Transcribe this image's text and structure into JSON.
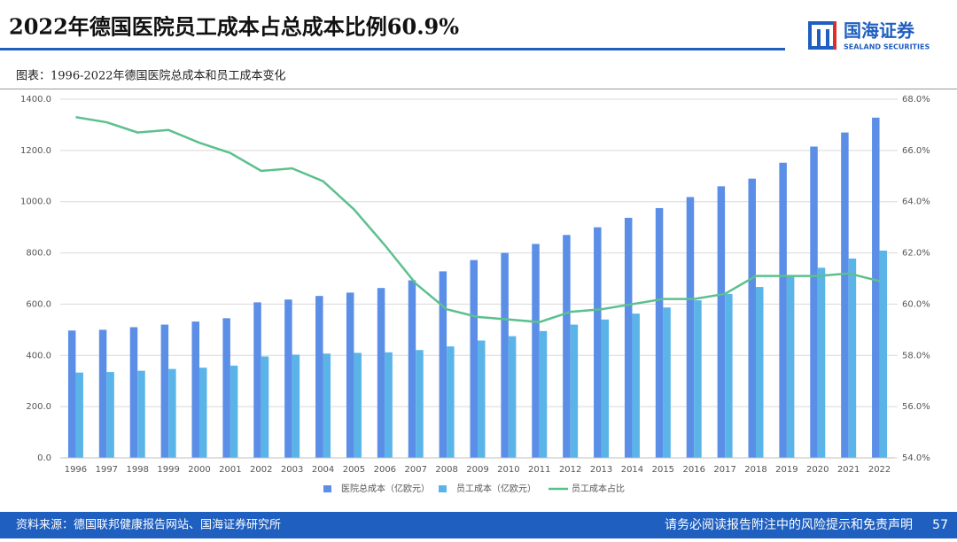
{
  "header": {
    "title": "2022年德国医院员工成本占总成本比例60.9%",
    "logo_name": "国海证券",
    "logo_sub": "SEALAND SECURITIES"
  },
  "subtitle": "图表：1996-2022年德国医院总成本和员工成本变化",
  "chart_data": {
    "type": "bar",
    "categories": [
      "1996",
      "1997",
      "1998",
      "1999",
      "2000",
      "2001",
      "2002",
      "2003",
      "2004",
      "2005",
      "2006",
      "2007",
      "2008",
      "2009",
      "2010",
      "2011",
      "2012",
      "2013",
      "2014",
      "2015",
      "2016",
      "2017",
      "2018",
      "2019",
      "2020",
      "2021",
      "2022"
    ],
    "series": [
      {
        "name": "医院总成本（亿欧元）",
        "color": "#5b8ee6",
        "type": "bar",
        "values": [
          497,
          500,
          510,
          520,
          532,
          545,
          607,
          618,
          632,
          645,
          663,
          693,
          728,
          772,
          800,
          835,
          870,
          900,
          937,
          975,
          1018,
          1060,
          1090,
          1152,
          1215,
          1270,
          1328
        ]
      },
      {
        "name": "员工成本（亿欧元）",
        "color": "#5bb4e8",
        "type": "bar",
        "values": [
          333,
          335,
          340,
          347,
          352,
          360,
          396,
          403,
          407,
          410,
          412,
          421,
          435,
          458,
          475,
          495,
          520,
          540,
          563,
          587,
          615,
          640,
          667,
          710,
          742,
          778,
          809
        ]
      },
      {
        "name": "员工成本占比",
        "color": "#5cc08e",
        "type": "line",
        "axis": "y2",
        "values": [
          67.3,
          67.1,
          66.7,
          66.8,
          66.3,
          65.9,
          65.2,
          65.3,
          64.8,
          63.7,
          62.3,
          60.8,
          59.8,
          59.5,
          59.4,
          59.3,
          59.7,
          59.8,
          60.0,
          60.2,
          60.2,
          60.4,
          61.1,
          61.1,
          61.1,
          61.2,
          60.9
        ]
      }
    ],
    "ylim": [
      0,
      1400
    ],
    "yticks": [
      {
        "value": 0,
        "label": "0.0"
      },
      {
        "value": 200,
        "label": "200.0"
      },
      {
        "value": 400,
        "label": "400.0"
      },
      {
        "value": 600,
        "label": "600.0"
      },
      {
        "value": 800,
        "label": "800.0"
      },
      {
        "value": 1000,
        "label": "1000.0"
      },
      {
        "value": 1200,
        "label": "1200.0"
      },
      {
        "value": 1400,
        "label": "1400.0"
      }
    ],
    "y2lim": [
      54,
      68
    ],
    "y2ticks": [
      {
        "value": 54,
        "label": "54.0%"
      },
      {
        "value": 56,
        "label": "56.0%"
      },
      {
        "value": 58,
        "label": "58.0%"
      },
      {
        "value": 60,
        "label": "60.0%"
      },
      {
        "value": 62,
        "label": "62.0%"
      },
      {
        "value": 64,
        "label": "64.0%"
      },
      {
        "value": 66,
        "label": "66.0%"
      },
      {
        "value": 68,
        "label": "68.0%"
      }
    ],
    "grid": true,
    "legend": "bottom"
  },
  "footer": {
    "source": "资料来源：德国联邦健康报告网站、国海证券研究所",
    "disclaimer": "请务必阅读报告附注中的风险提示和免责声明",
    "page": "57"
  }
}
